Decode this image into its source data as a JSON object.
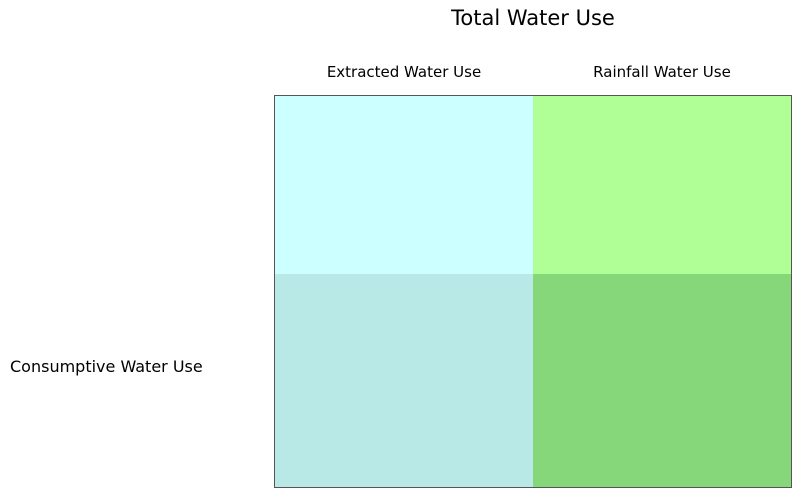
{
  "title": "Total Water Use",
  "columns": {
    "left": "Extracted Water Use",
    "right": "Rainfall Water Use"
  },
  "rows": {
    "bottom": "Consumptive Water Use"
  },
  "colors": {
    "extracted_total": "#ccffff",
    "rainfall_total": "#b0ff96",
    "extracted_consumptive": "#b9e9e7",
    "rainfall_consumptive": "#85d779",
    "border": "#555555"
  }
}
